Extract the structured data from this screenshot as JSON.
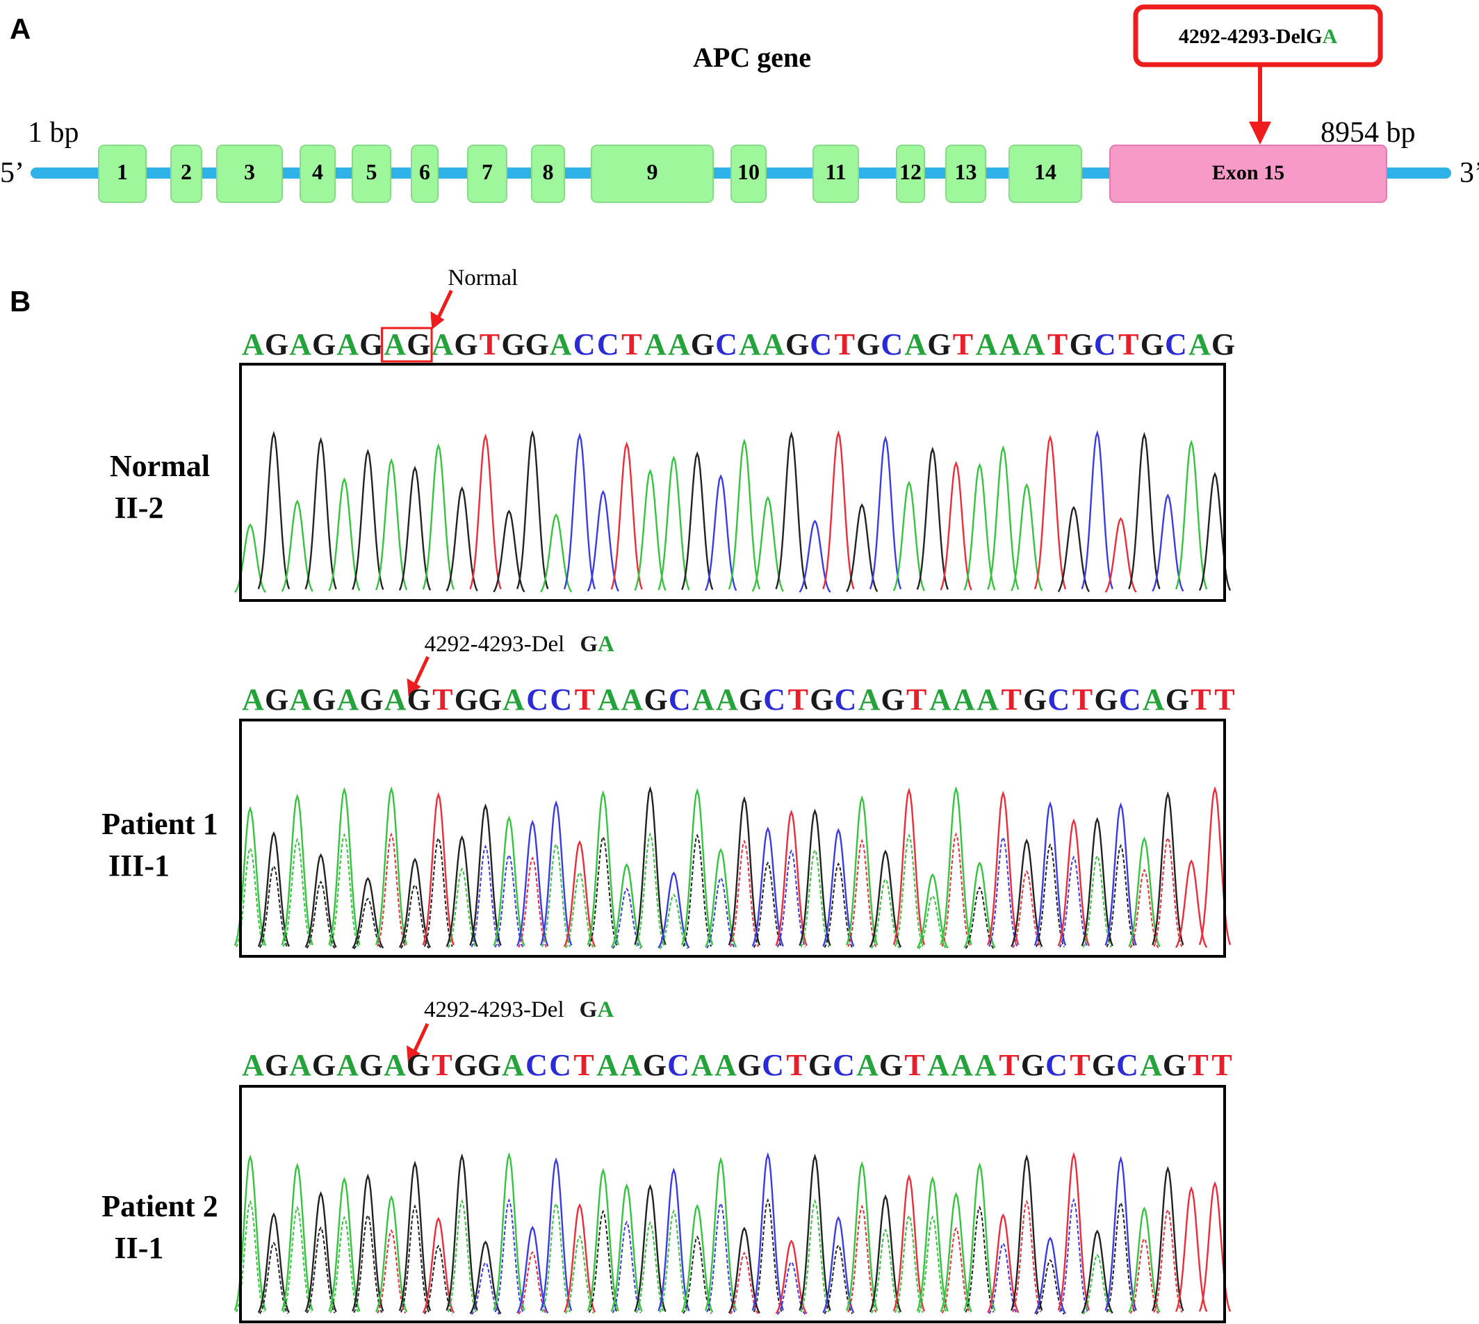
{
  "panel_a": {
    "label": "A",
    "title": "APC gene",
    "start_label": "1 bp",
    "end_label": "8954 bp",
    "five_prime": "5’",
    "three_prime": "3’",
    "exons": [
      "1",
      "2",
      "3",
      "4",
      "5",
      "6",
      "7",
      "8",
      "9",
      "10",
      "11",
      "12",
      "13",
      "14",
      "Exon 15"
    ],
    "mutation": {
      "prefix": "4292-4293-Del",
      "base_g": "G",
      "base_a": "A"
    },
    "colors": {
      "line": "#2EB2E8",
      "exon": "#9EF79A",
      "exon_border": "#8BD98A",
      "mutant_exon": "#F79AC8",
      "mutant_border": "#E77AB2",
      "highlight": "#EE1C1C"
    }
  },
  "panel_b": {
    "label": "B",
    "base_colors": {
      "A": "#23A33A",
      "G": "#1A1A1A",
      "C": "#2A2AD6",
      "T": "#E81E2A"
    },
    "trace_colors": {
      "A": "#35C43E",
      "G": "#222222",
      "C": "#3A3AE6",
      "T": "#EE2B38"
    },
    "tracks": [
      {
        "name_line1": "Normal",
        "name_line2": "II-2",
        "annotation_text": "Normal",
        "annotation_gt": "",
        "sequence": "AGAGAGAGAGTGGACCTAAGCAAGCTGCAGTAAATGCTGCAG",
        "boxed_bases": [
          6,
          7
        ],
        "arrow_at_base": 8
      },
      {
        "name_line1": "Patient 1",
        "name_line2": "III-1",
        "annotation_text": "4292-4293-Del",
        "annotation_gt": "GA",
        "sequence": "AGAGAGAGTGGACCTAAGCAAGCTGCAGTAAATGCTGCAGTT",
        "boxed_bases": [],
        "arrow_at_base": 7
      },
      {
        "name_line1": "Patient 2",
        "name_line2": "II-1",
        "annotation_text": "4292-4293-Del",
        "annotation_gt": "GA",
        "sequence": "AGAGAGAGTGGACCTAAGCAAGCTGCAGTAAATGCTGCAGTT",
        "boxed_bases": [],
        "arrow_at_base": 7
      }
    ]
  }
}
